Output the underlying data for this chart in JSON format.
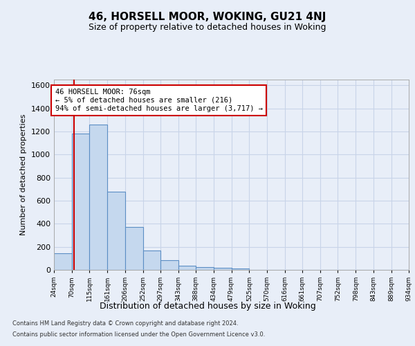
{
  "title": "46, HORSELL MOOR, WOKING, GU21 4NJ",
  "subtitle": "Size of property relative to detached houses in Woking",
  "xlabel": "Distribution of detached houses by size in Woking",
  "ylabel": "Number of detached properties",
  "bins": [
    "24sqm",
    "70sqm",
    "115sqm",
    "161sqm",
    "206sqm",
    "252sqm",
    "297sqm",
    "343sqm",
    "388sqm",
    "434sqm",
    "479sqm",
    "525sqm",
    "570sqm",
    "616sqm",
    "661sqm",
    "707sqm",
    "752sqm",
    "798sqm",
    "843sqm",
    "889sqm",
    "934sqm"
  ],
  "values": [
    145,
    1180,
    1260,
    680,
    375,
    170,
    85,
    35,
    25,
    20,
    15,
    0,
    0,
    0,
    0,
    0,
    0,
    0,
    0,
    0,
    0
  ],
  "bin_edges": [
    24,
    70,
    115,
    161,
    206,
    252,
    297,
    343,
    388,
    434,
    479,
    525,
    570,
    616,
    661,
    707,
    752,
    798,
    843,
    889,
    934
  ],
  "bar_color": "#c5d8ee",
  "bar_edge_color": "#5b8ec4",
  "grid_color": "#c8d4e8",
  "property_value": 76,
  "red_line_color": "#cc0000",
  "annotation_text": "46 HORSELL MOOR: 76sqm\n← 5% of detached houses are smaller (216)\n94% of semi-detached houses are larger (3,717) →",
  "annotation_box_color": "#ffffff",
  "annotation_box_edge_color": "#cc0000",
  "ylim": [
    0,
    1650
  ],
  "yticks": [
    0,
    200,
    400,
    600,
    800,
    1000,
    1200,
    1400,
    1600
  ],
  "footer_line1": "Contains HM Land Registry data © Crown copyright and database right 2024.",
  "footer_line2": "Contains public sector information licensed under the Open Government Licence v3.0.",
  "background_color": "#e8eef8",
  "plot_bg_color": "#e8eef8"
}
